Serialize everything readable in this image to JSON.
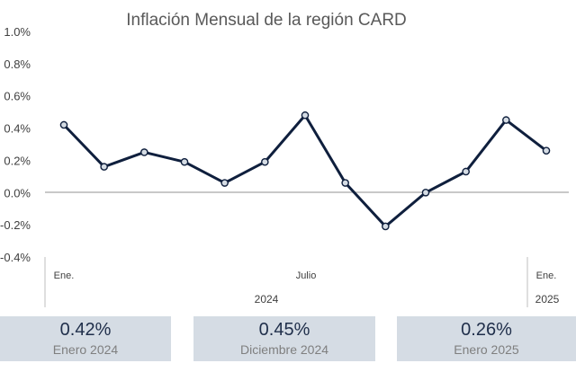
{
  "chart_data": {
    "type": "line",
    "title": "Inflación Mensual de la región CARD",
    "y_ticks": [
      "1.0%",
      "0.8%",
      "0.6%",
      "0.4%",
      "0.2%",
      "0.0%",
      "-0.2%",
      "-0.4%"
    ],
    "ylim": [
      -0.4,
      1.0
    ],
    "x_tick_labels": [
      "Ene.",
      "Julio",
      "Ene."
    ],
    "x_group_labels": [
      "2024",
      "2025"
    ],
    "series": [
      {
        "values": [
          0.42,
          0.16,
          0.25,
          0.19,
          0.06,
          0.19,
          0.48,
          0.06,
          -0.21,
          0.0,
          0.13,
          0.45,
          0.26
        ]
      }
    ],
    "line_color": "#0f1f3d",
    "marker_fill": "#d5dce4"
  },
  "cards": [
    {
      "value": "0.42%",
      "label": "Enero 2024"
    },
    {
      "value": "0.45%",
      "label": "Diciembre 2024"
    },
    {
      "value": "0.26%",
      "label": "Enero 2025"
    }
  ]
}
